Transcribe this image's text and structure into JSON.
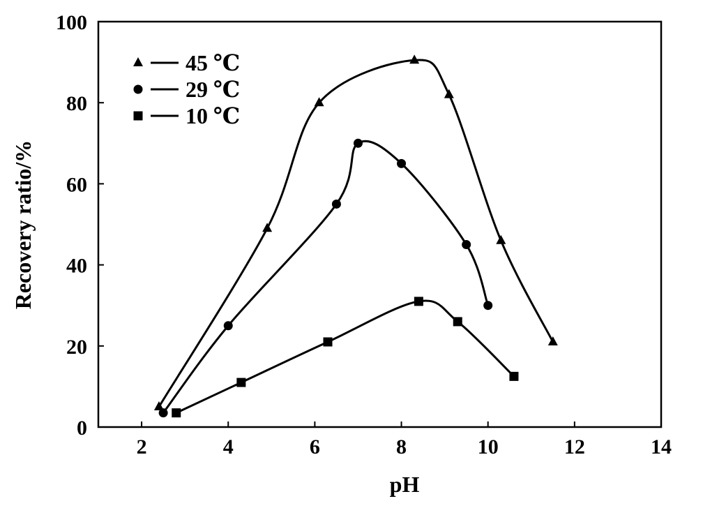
{
  "chart_data": {
    "type": "line",
    "title": "",
    "xlabel": "pH",
    "ylabel": "Recovery ratio/%",
    "xlim": [
      1,
      14
    ],
    "ylim": [
      0,
      100
    ],
    "xticks": [
      2,
      4,
      6,
      8,
      10,
      12,
      14
    ],
    "yticks": [
      0,
      20,
      40,
      60,
      80,
      100
    ],
    "grid": false,
    "legend_position": "top-left",
    "series": [
      {
        "name": "45 ℃",
        "marker": "triangle",
        "color": "#000000",
        "points": [
          [
            2.4,
            5
          ],
          [
            4.9,
            49
          ],
          [
            6.1,
            80
          ],
          [
            8.3,
            90.5
          ],
          [
            9.1,
            82
          ],
          [
            10.3,
            46
          ],
          [
            11.5,
            21
          ]
        ]
      },
      {
        "name": "29 ℃",
        "marker": "circle",
        "color": "#000000",
        "points": [
          [
            2.5,
            3.5
          ],
          [
            4.0,
            25
          ],
          [
            6.5,
            55
          ],
          [
            7.0,
            70
          ],
          [
            8.0,
            65
          ],
          [
            9.5,
            45
          ],
          [
            10.0,
            30
          ]
        ]
      },
      {
        "name": "10 ℃",
        "marker": "square",
        "color": "#000000",
        "points": [
          [
            2.8,
            3.5
          ],
          [
            4.3,
            11
          ],
          [
            6.3,
            21
          ],
          [
            8.4,
            31
          ],
          [
            9.3,
            26
          ],
          [
            10.6,
            12.5
          ]
        ]
      }
    ]
  }
}
